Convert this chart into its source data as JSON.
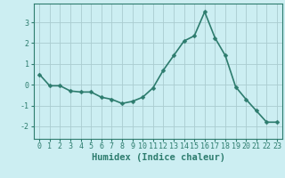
{
  "x": [
    0,
    1,
    2,
    3,
    4,
    5,
    6,
    7,
    8,
    9,
    10,
    11,
    12,
    13,
    14,
    15,
    16,
    17,
    18,
    19,
    20,
    21,
    22,
    23
  ],
  "y": [
    0.5,
    -0.05,
    -0.05,
    -0.3,
    -0.35,
    -0.35,
    -0.6,
    -0.7,
    -0.9,
    -0.8,
    -0.6,
    -0.15,
    0.7,
    1.4,
    2.1,
    2.35,
    3.5,
    2.25,
    1.4,
    -0.1,
    -0.7,
    -1.25,
    -1.8,
    -1.8
  ],
  "line_color": "#2d7c6e",
  "marker": "D",
  "marker_size": 2.5,
  "bg_color": "#cceef2",
  "grid_color": "#aaccd0",
  "xlabel": "Humidex (Indice chaleur)",
  "xlim": [
    -0.5,
    23.5
  ],
  "ylim": [
    -2.6,
    3.9
  ],
  "yticks": [
    -2,
    -1,
    0,
    1,
    2,
    3
  ],
  "xticks": [
    0,
    1,
    2,
    3,
    4,
    5,
    6,
    7,
    8,
    9,
    10,
    11,
    12,
    13,
    14,
    15,
    16,
    17,
    18,
    19,
    20,
    21,
    22,
    23
  ],
  "tick_fontsize": 6,
  "xlabel_fontsize": 7.5,
  "line_width": 1.2,
  "line_color2": "#2d7c6e",
  "spine_color": "#2d7c6e",
  "axis_color": "#2d7c6e"
}
